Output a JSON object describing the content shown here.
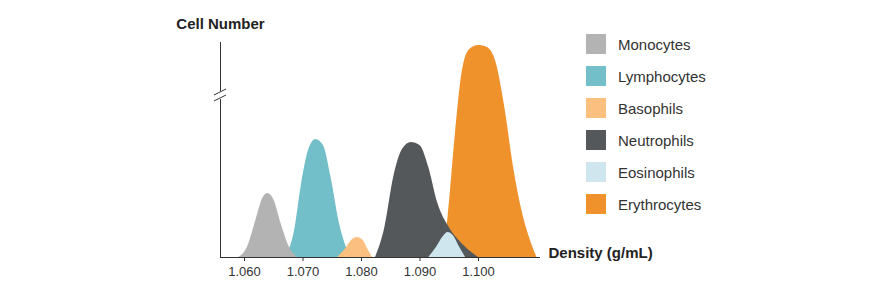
{
  "chart_data": {
    "type": "area",
    "y_label": "Cell Number",
    "x_label": "Density (g/mL)",
    "xlim": [
      1.0559,
      1.1106
    ],
    "xticks": [
      {
        "value": 1.06,
        "label": "1.060"
      },
      {
        "value": 1.07,
        "label": "1.070"
      },
      {
        "value": 1.08,
        "label": "1.080"
      },
      {
        "value": 1.09,
        "label": "1.090"
      },
      {
        "value": 1.1,
        "label": "1.100"
      }
    ],
    "ylim": [
      0,
      215
    ],
    "yticks": [],
    "tick_labels": "x",
    "legend": "right",
    "series": [
      {
        "name": "Monocytes",
        "color": "#b3b3b3",
        "x": [
          1.059,
          1.0605,
          1.062,
          1.0632,
          1.064,
          1.065,
          1.0662,
          1.0677,
          1.0691
        ],
        "values": [
          0,
          10,
          38,
          60,
          64,
          58,
          35,
          10,
          0
        ]
      },
      {
        "name": "Lymphocytes",
        "color": "#72bfc9",
        "x": [
          1.067,
          1.0685,
          1.0698,
          1.071,
          1.0722,
          1.0735,
          1.0748,
          1.0762,
          1.0781
        ],
        "values": [
          0,
          25,
          75,
          108,
          118,
          112,
          80,
          35,
          0
        ]
      },
      {
        "name": "Basophils",
        "color": "#fbbf7f",
        "x": [
          1.0759,
          1.0772,
          1.0783,
          1.0793,
          1.0803,
          1.0811,
          1.0819
        ],
        "values": [
          0,
          8,
          17,
          20,
          17,
          8,
          0
        ]
      },
      {
        "name": "Neutrophils",
        "color": "#55585b",
        "x": [
          1.0824,
          1.084,
          1.0855,
          1.087,
          1.0885,
          1.09,
          1.0915,
          1.093,
          1.095,
          1.0975,
          1.1
        ],
        "values": [
          0,
          30,
          80,
          108,
          115,
          112,
          90,
          55,
          30,
          12,
          0
        ]
      },
      {
        "name": "Eosinophils",
        "color": "#cfe6ee",
        "x": [
          1.0915,
          1.0928,
          1.094,
          1.0948,
          1.0958,
          1.0968,
          1.0978
        ],
        "values": [
          0,
          10,
          21,
          25,
          21,
          10,
          0
        ]
      },
      {
        "name": "Erythrocytes",
        "color": "#f0922b",
        "x": [
          1.0935,
          1.0948,
          1.096,
          1.0972,
          1.0985,
          1.1,
          1.1015,
          1.103,
          1.1045,
          1.106,
          1.1075,
          1.109,
          1.11
        ],
        "values": [
          0,
          40,
          120,
          185,
          208,
          212,
          210,
          195,
          150,
          90,
          45,
          15,
          0
        ]
      }
    ]
  }
}
